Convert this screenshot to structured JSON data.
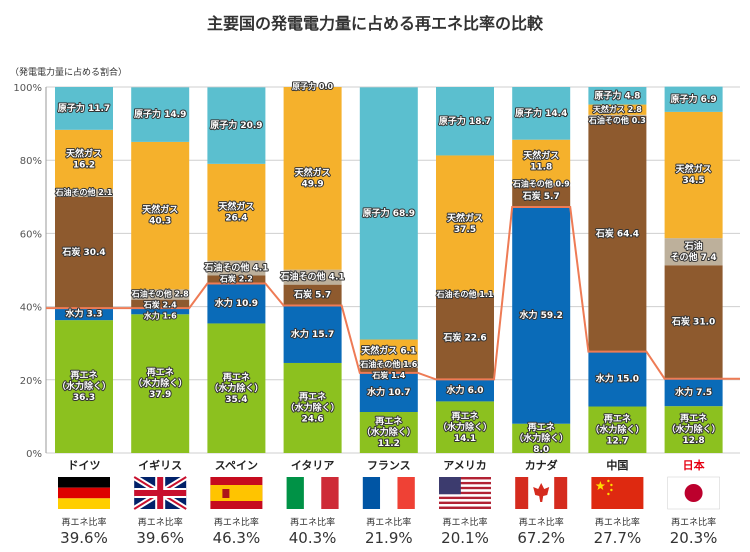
{
  "title": "主要国の発電電力量に占める再エネ比率の比較",
  "chart_data": {
    "type": "stacked-bar",
    "ylabel": "（発電電力量に占める割合）",
    "ylim": [
      0,
      100
    ],
    "yticks": [
      "0%",
      "20%",
      "40%",
      "60%",
      "80%",
      "100%"
    ],
    "grid": true,
    "categories": [
      "ドイツ",
      "イギリス",
      "スペイン",
      "イタリア",
      "フランス",
      "アメリカ",
      "カナダ",
      "中国",
      "日本"
    ],
    "highlight_category": "日本",
    "series": [
      {
        "name": "再エネ（水力除く）",
        "label_lines": [
          "再エネ",
          "（水力除く）"
        ],
        "color": "#8cc11f",
        "values": [
          36.3,
          37.9,
          35.4,
          24.6,
          11.2,
          14.1,
          8.0,
          12.7,
          12.8
        ]
      },
      {
        "name": "水力",
        "color": "#0a6bb8",
        "values": [
          3.3,
          1.6,
          10.9,
          15.7,
          10.7,
          6.0,
          59.2,
          15.0,
          7.5
        ]
      },
      {
        "name": "石炭",
        "color": "#8e5a2e",
        "values": [
          30.4,
          2.4,
          2.2,
          5.7,
          1.4,
          22.6,
          5.7,
          64.4,
          31.0
        ]
      },
      {
        "name": "石油その他",
        "label_lines_two": [
          "石油",
          "その他"
        ],
        "color": "#bdb09b",
        "values": [
          2.1,
          2.8,
          4.1,
          4.1,
          1.6,
          1.1,
          0.9,
          0.3,
          7.4
        ]
      },
      {
        "name": "天然ガス",
        "color": "#f5b12c",
        "values": [
          16.2,
          40.3,
          26.4,
          49.9,
          6.1,
          37.5,
          11.8,
          2.8,
          34.5
        ]
      },
      {
        "name": "原子力",
        "color": "#5bbfcf",
        "values": [
          11.7,
          14.9,
          20.9,
          0.0,
          68.9,
          18.7,
          14.4,
          4.8,
          6.9
        ]
      }
    ],
    "ratio_label": "再エネ比率",
    "ratios": [
      "39.6%",
      "39.6%",
      "46.3%",
      "40.3%",
      "21.9%",
      "20.1%",
      "67.2%",
      "27.7%",
      "20.3%"
    ],
    "ratio_values": [
      39.6,
      39.6,
      46.3,
      40.3,
      21.9,
      20.1,
      67.2,
      27.7,
      20.3
    ],
    "line_color": "#ee7b55",
    "flags": [
      "germany-flag",
      "uk-flag",
      "spain-flag",
      "italy-flag",
      "france-flag",
      "usa-flag",
      "canada-flag",
      "china-flag",
      "japan-flag"
    ]
  }
}
